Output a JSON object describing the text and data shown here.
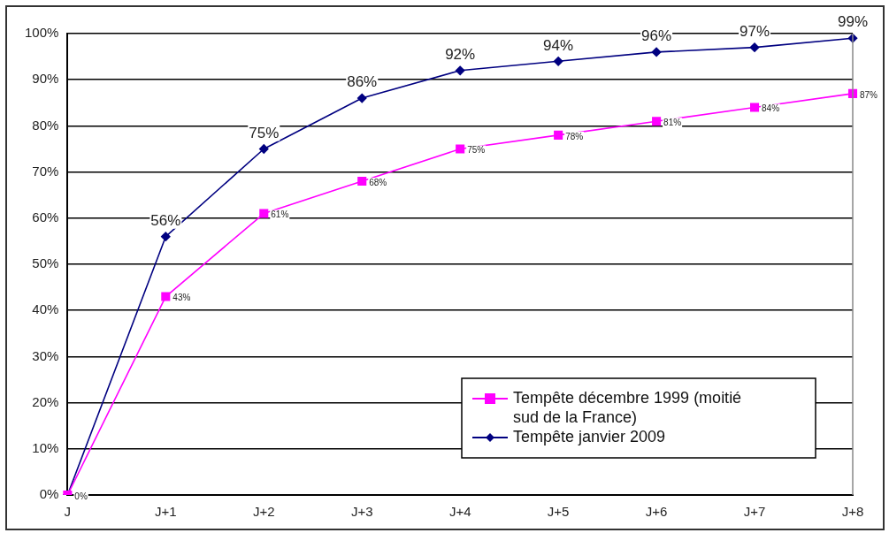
{
  "chart_data": {
    "type": "line",
    "categories": [
      "J",
      "J+1",
      "J+2",
      "J+3",
      "J+4",
      "J+5",
      "J+6",
      "J+7",
      "J+8"
    ],
    "series": [
      {
        "name": "Tempête décembre 1999 (moitié sud de la France)",
        "color": "#ff00ff",
        "marker": "square",
        "values": [
          0,
          43,
          61,
          68,
          75,
          78,
          81,
          84,
          87
        ],
        "value_labels": [
          "0%",
          "43%",
          "61%",
          "68%",
          "75%",
          "78%",
          "81%",
          "84%",
          "87%"
        ]
      },
      {
        "name": "Tempête janvier 2009",
        "color": "#000080",
        "marker": "diamond",
        "values": [
          0,
          56,
          75,
          86,
          92,
          94,
          96,
          97,
          99
        ],
        "value_labels": [
          null,
          "56%",
          "75%",
          "86%",
          "92%",
          "94%",
          "96%",
          "97%",
          "99%"
        ]
      }
    ],
    "ylim": [
      0,
      100
    ],
    "yticks": [
      {
        "value": 0,
        "label": "0%"
      },
      {
        "value": 10,
        "label": "10%"
      },
      {
        "value": 20,
        "label": "20%"
      },
      {
        "value": 30,
        "label": "30%"
      },
      {
        "value": 40,
        "label": "40%"
      },
      {
        "value": 50,
        "label": "50%"
      },
      {
        "value": 60,
        "label": "60%"
      },
      {
        "value": 70,
        "label": "70%"
      },
      {
        "value": 80,
        "label": "80%"
      },
      {
        "value": 90,
        "label": "90%"
      },
      {
        "value": 100,
        "label": "100%"
      }
    ],
    "grid": "y",
    "legend": "bottom right",
    "line_style": "solid"
  }
}
